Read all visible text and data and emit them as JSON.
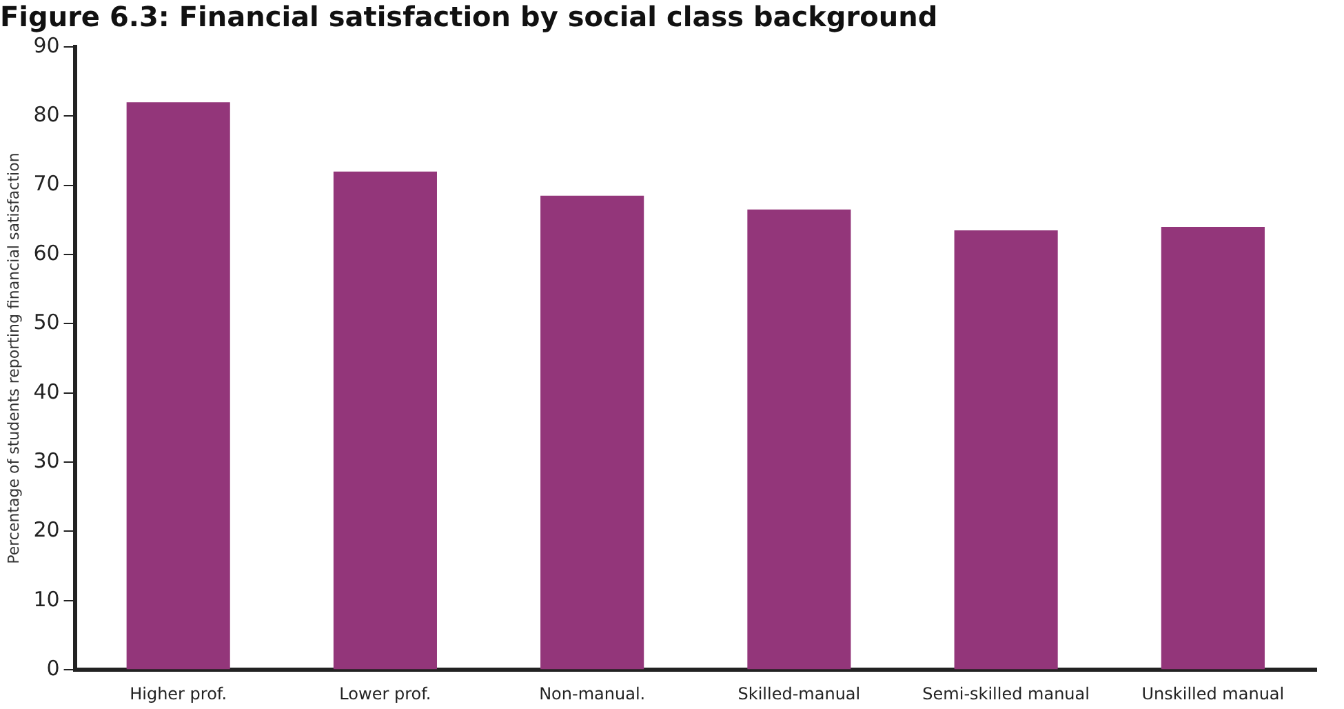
{
  "chart_data": {
    "type": "bar",
    "title": "Figure 6.3: Financial satisfaction by social class background",
    "ylabel": "Percentage of students reporting financial satisfaction",
    "categories": [
      "Higher prof.",
      "Lower prof.",
      "Non-manual.",
      "Skilled-manual",
      "Semi-skilled manual",
      "Unskilled manual"
    ],
    "values": [
      82,
      72,
      68.5,
      66.5,
      63.5,
      64
    ],
    "color": "#93367a",
    "ylim": [
      0,
      90
    ],
    "yticks": [
      0,
      10,
      20,
      30,
      40,
      50,
      60,
      70,
      80,
      90
    ],
    "grid": false
  }
}
